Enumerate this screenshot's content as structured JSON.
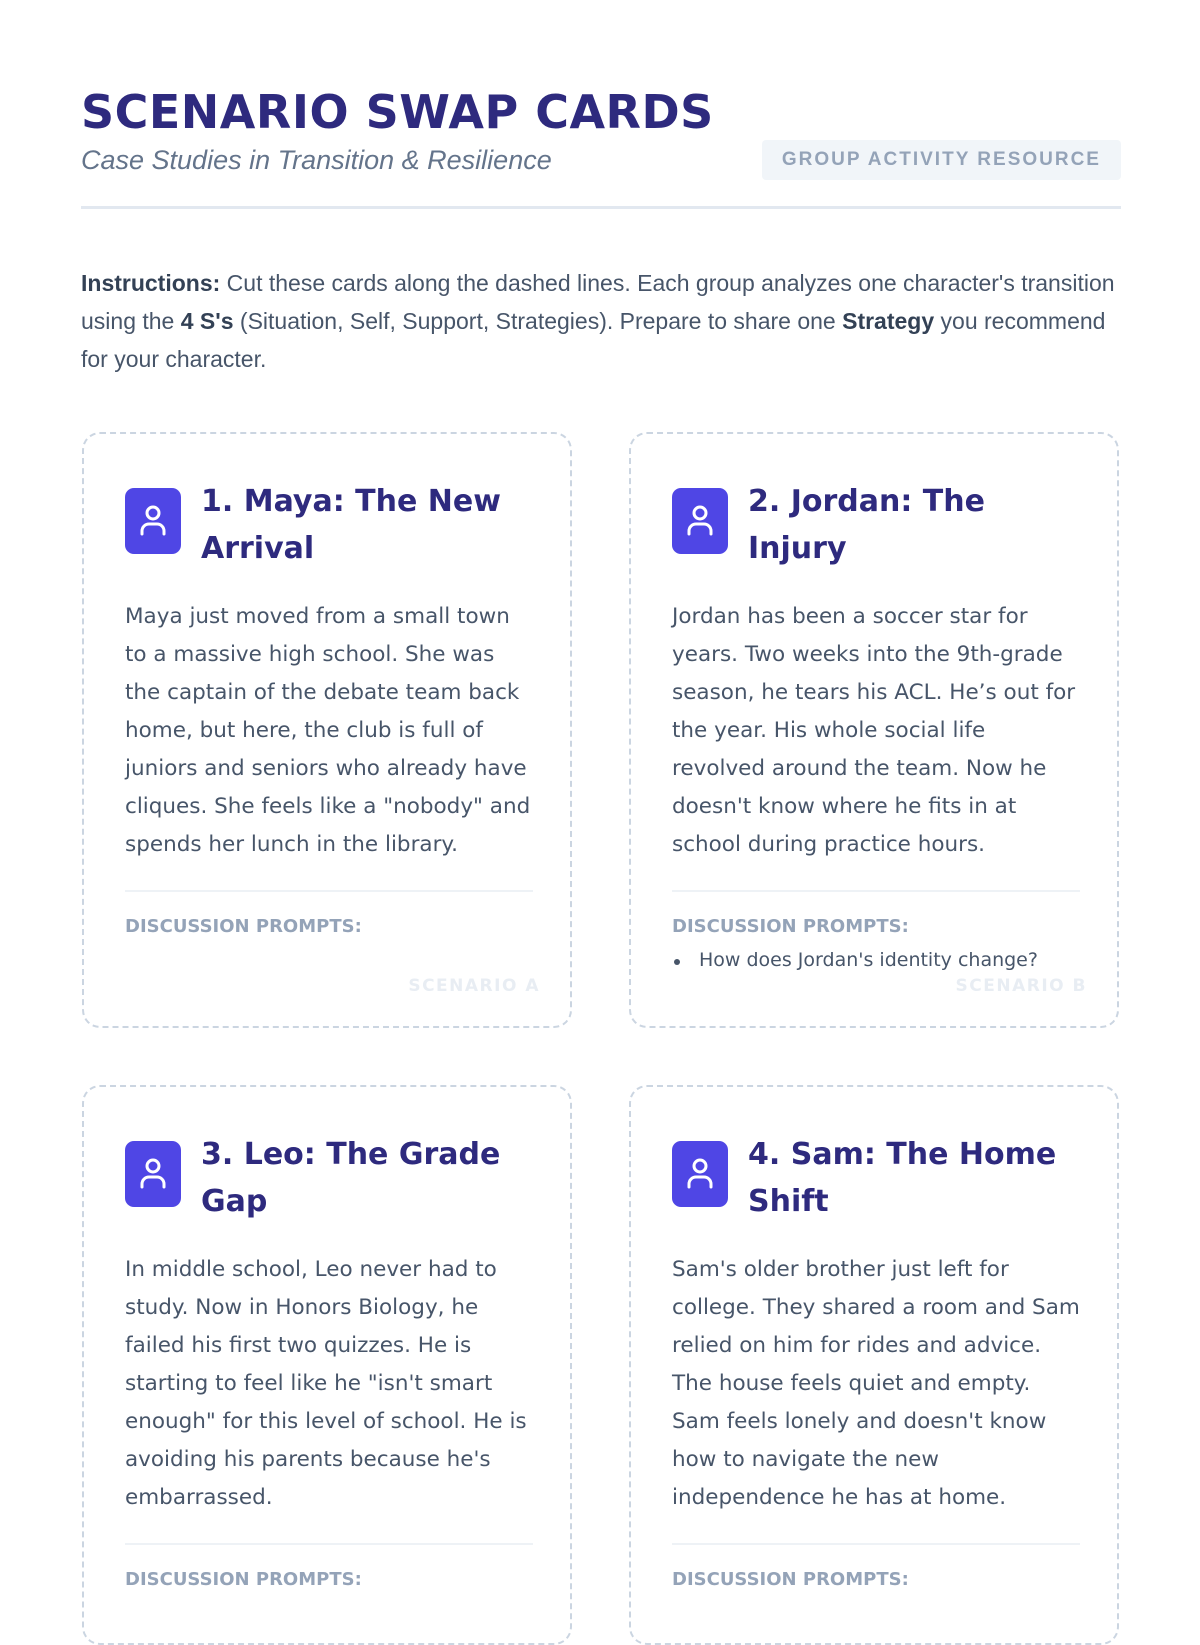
{
  "header": {
    "title": "SCENARIO SWAP CARDS",
    "subtitle": "Case Studies in Transition & Resilience",
    "badge": "GROUP ACTIVITY RESOURCE"
  },
  "instructions": {
    "label": "Instructions:",
    "t1": " Cut these cards along the dashed lines. Each group analyzes one character's transition using the ",
    "b1": "4 S's",
    "t2": " (Situation, Self, Support, Strategies). Prepare to share one ",
    "b2": "Strategy",
    "t3": " you recommend for your character."
  },
  "colors": {
    "accent": "#4f46e5",
    "title": "#2e2a7e",
    "border": "#cbd5e1"
  },
  "cards": [
    {
      "icon": "user-icon",
      "title": "1. Maya: The New Arrival",
      "body": "Maya just moved from a small town to a massive high school. She was the captain of the debate team back home, but here, the club is full of juniors and seniors who already have cliques. She feels like a \"nobody\" and spends her lunch in the library.",
      "prompts_label": "DISCUSSION PROMPTS:",
      "prompts": [],
      "tag": "SCENARIO A"
    },
    {
      "icon": "user-icon",
      "title": "2. Jordan: The Injury",
      "body": "Jordan has been a soccer star for years. Two weeks into the 9th-grade season, he tears his ACL. He’s out for the year. His whole social life revolved around the team. Now he doesn't know where he fits in at school during practice hours.",
      "prompts_label": "DISCUSSION PROMPTS:",
      "prompts": [
        "How does Jordan's identity change?"
      ],
      "tag": "SCENARIO B"
    },
    {
      "icon": "user-icon",
      "title": "3. Leo: The Grade Gap",
      "body": "In middle school, Leo never had to study. Now in Honors Biology, he failed his first two quizzes. He is starting to feel like he \"isn't smart enough\" for this level of school. He is avoiding his parents because he's embarrassed.",
      "prompts_label": "DISCUSSION PROMPTS:",
      "prompts": [],
      "tag": ""
    },
    {
      "icon": "user-icon",
      "title": "4. Sam: The Home Shift",
      "body": "Sam's older brother just left for college. They shared a room and Sam relied on him for rides and advice. The house feels quiet and empty. Sam feels lonely and doesn't know how to navigate the new independence he has at home.",
      "prompts_label": "DISCUSSION PROMPTS:",
      "prompts": [],
      "tag": ""
    }
  ]
}
